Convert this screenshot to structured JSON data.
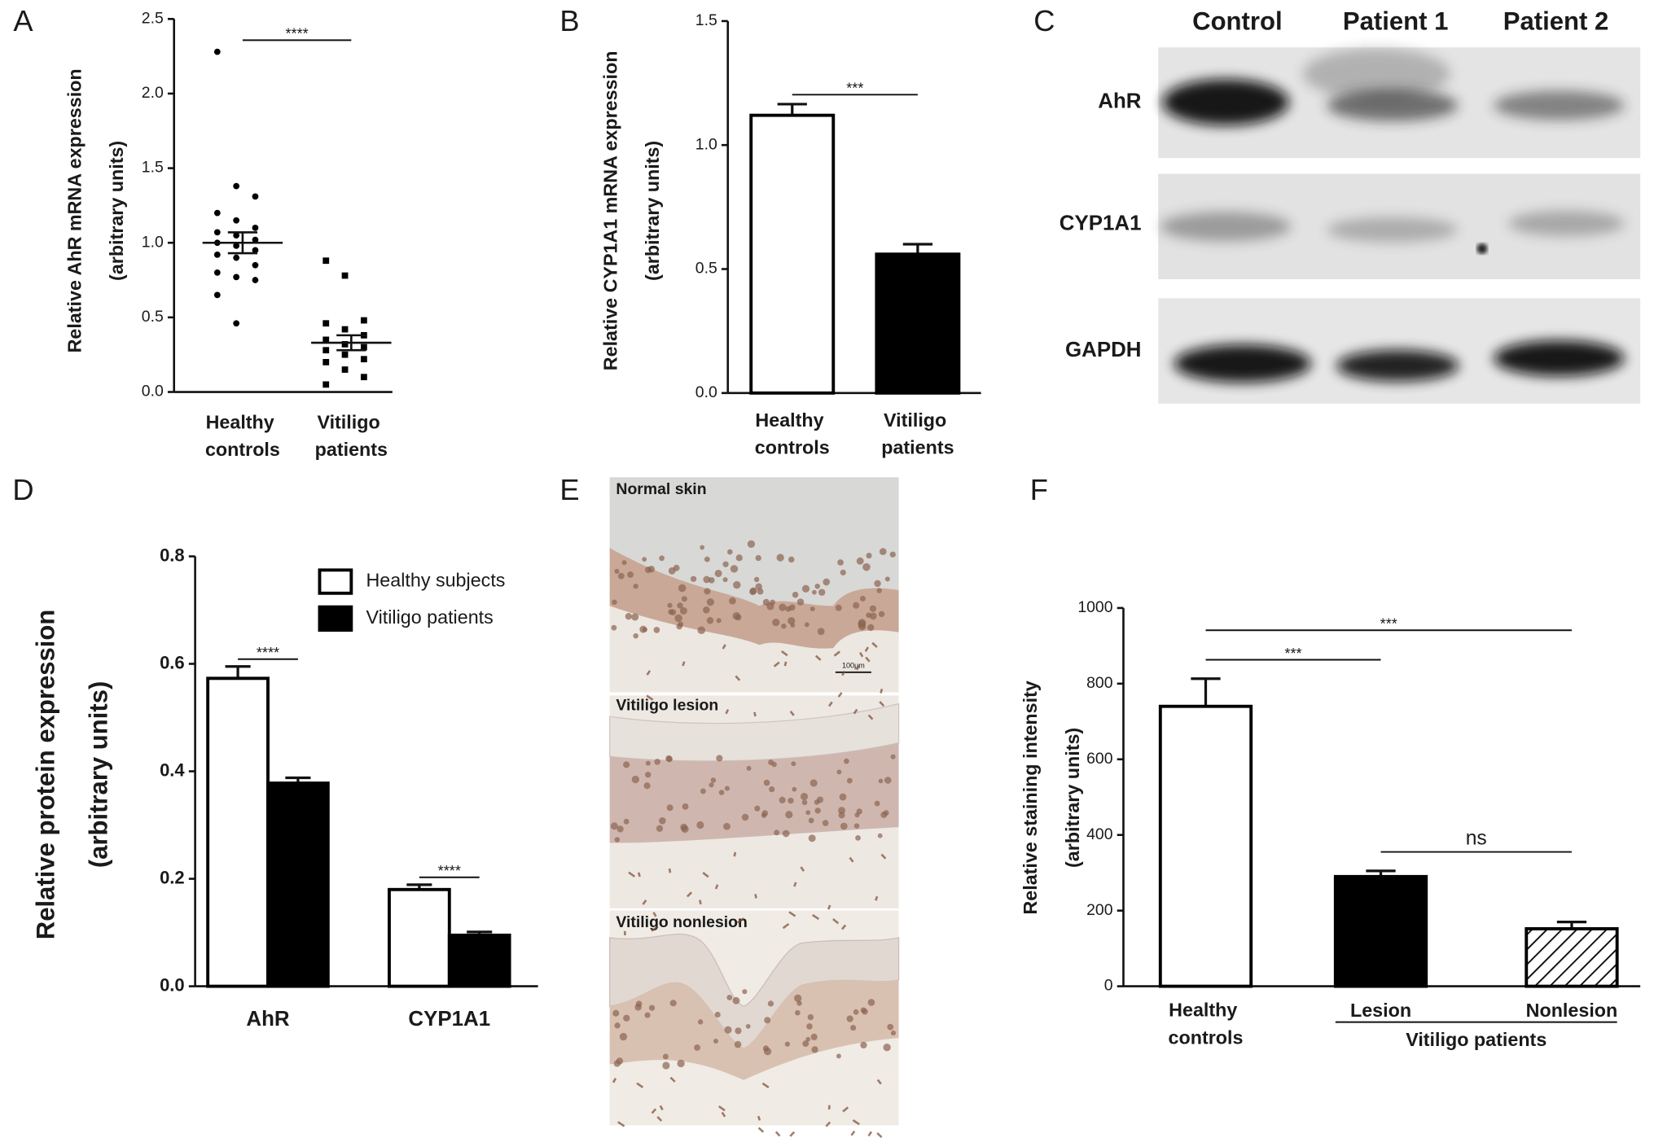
{
  "chart_data": [
    {
      "panel": "A",
      "type": "dot",
      "ylabel": [
        "Relative AhR  mRNA expression",
        "(arbitrary units)"
      ],
      "categories": [
        "Healthy controls",
        "Vitiligo patients"
      ],
      "points": [
        [
          2.28,
          1.38,
          1.31,
          1.2,
          1.15,
          1.1,
          1.07,
          1.05,
          1.02,
          1.0,
          0.98,
          0.95,
          0.92,
          0.9,
          0.85,
          0.8,
          0.77,
          0.75,
          0.65,
          0.46
        ],
        [
          0.88,
          0.78,
          0.48,
          0.46,
          0.42,
          0.38,
          0.35,
          0.32,
          0.3,
          0.28,
          0.25,
          0.22,
          0.2,
          0.15,
          0.1,
          0.05
        ]
      ],
      "markers": [
        "circle",
        "square"
      ],
      "color": "#000000",
      "means": [
        1.0,
        0.33
      ],
      "errors": [
        0.07,
        0.05
      ],
      "ylim": [
        0,
        2.5
      ],
      "yticks": [
        {
          "value": 0,
          "label": "0.0"
        },
        0.5,
        {
          "value": 1,
          "label": "1.0"
        },
        1.5,
        {
          "value": 2,
          "label": "2.0"
        },
        2.5
      ],
      "annotations": [
        {
          "text": "****",
          "from": 0,
          "to": 1
        }
      ]
    },
    {
      "panel": "B",
      "type": "bar",
      "ylabel": [
        "Relative CYP1A1 mRNA expression",
        "(arbitrary units)"
      ],
      "categories": [
        "Healthy controls",
        "Vitiligo patients"
      ],
      "values": [
        1.12,
        0.56
      ],
      "errors": [
        0.045,
        0.04
      ],
      "colors": [
        "#ffffff",
        "#000000"
      ],
      "edgecolor": "#000000",
      "ylim": [
        0,
        1.5
      ],
      "yticks": [
        {
          "value": 0,
          "label": "0.0"
        },
        0.5,
        {
          "value": 1,
          "label": "1.0"
        },
        1.5
      ],
      "annotations": [
        {
          "text": "***",
          "from": 0,
          "to": 1
        }
      ]
    },
    {
      "panel": "D",
      "type": "grouped_bar",
      "ylabel": [
        "Relative protein expression",
        "(arbitrary units)"
      ],
      "categories": [
        "AhR",
        "CYP1A1"
      ],
      "edgecolor": "#000000",
      "series": [
        {
          "name": "Healthy subjects",
          "color": "#ffffff",
          "values": [
            0.573,
            0.18
          ],
          "errors": [
            0.022,
            0.009
          ]
        },
        {
          "name": "Vitiligo patients",
          "color": "#000000",
          "values": [
            0.378,
            0.095
          ],
          "errors": [
            0.01,
            0.006
          ]
        }
      ],
      "ylim": [
        0,
        0.8
      ],
      "yticks": [
        {
          "value": 0,
          "label": "0.0"
        },
        0.2,
        0.4,
        0.6,
        0.8
      ],
      "legend": "upper right",
      "annotations": [
        {
          "text": "****",
          "category": 0
        },
        {
          "text": "****",
          "category": 1
        }
      ]
    },
    {
      "panel": "F",
      "type": "bar",
      "ylabel": [
        "Relative staining intensity",
        "(arbitrary units)"
      ],
      "categories": [
        "Healthy controls",
        "Lesion",
        "Nonlesion"
      ],
      "values": [
        740,
        290,
        152
      ],
      "errors": [
        73,
        15,
        18
      ],
      "colors": [
        "#ffffff",
        "#000000",
        "#ffffff"
      ],
      "hatch": [
        false,
        false,
        true
      ],
      "edgecolor": "#000000",
      "ylim": [
        0,
        1000
      ],
      "yticks": [
        0,
        200,
        400,
        600,
        800,
        1000
      ],
      "group": {
        "text": "Vitiligo patients",
        "from": 1,
        "to": 2
      },
      "annotations": [
        {
          "text": "***",
          "from": 0,
          "to": 1
        },
        {
          "text": "***",
          "from": 0,
          "to": 2
        },
        {
          "text": "ns",
          "from": 1,
          "to": 2
        }
      ]
    }
  ],
  "blot": {
    "panel": "C",
    "columns": [
      "Control",
      "Patient 1",
      "Patient 2"
    ],
    "rows": [
      "AhR",
      "CYP1A1",
      "GAPDH"
    ]
  },
  "histology": {
    "panel": "E",
    "sections": [
      "Normal skin",
      "Vitiligo lesion",
      "Vitiligo nonlesion"
    ],
    "scale_bar": "100μm"
  }
}
